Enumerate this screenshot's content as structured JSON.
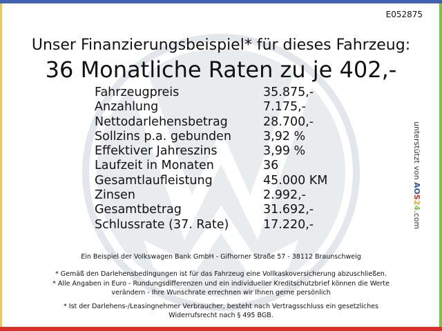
{
  "border_colors": {
    "top": "#3f63b0",
    "left": "#f3c64e",
    "right": "#7cc24a",
    "bottom": "#d6322b"
  },
  "watermark": "vw-logo",
  "code": "E052875",
  "title": "Unser Finanzierungsbeispiel* für dieses Fahrzeug:",
  "headline": "36 Monatliche Raten zu je 402,-",
  "rows": [
    {
      "label": "Fahrzeugpreis",
      "value": "35.875,-"
    },
    {
      "label": "Anzahlung",
      "value": "7.175,-"
    },
    {
      "label": "Nettodarlehensbetrag",
      "value": "28.700,-"
    },
    {
      "label": "Sollzins p.a. gebunden",
      "value": "3,92 %"
    },
    {
      "label": "Effektiver Jahreszins",
      "value": "3,99 %"
    },
    {
      "label": "Laufzeit in Monaten",
      "value": "36"
    },
    {
      "label": "Gesamtlaufleistung",
      "value": "45.000 KM"
    },
    {
      "label": "Zinsen",
      "value": "2.992,-"
    },
    {
      "label": "Gesamtbetrag",
      "value": "31.692,-"
    },
    {
      "label": "Schlussrate (37. Rate)",
      "value": "17.220,-"
    }
  ],
  "side": {
    "text": "unterstützt von",
    "brand": "AOS24",
    "suffix": ".com"
  },
  "footer": {
    "bank": "Ein Beispiel der Volkswagen Bank GmbH - Gifhorner Straße 57 - 38112 Braunschweig",
    "note1": "* Gemäß den Darlehensbedingungen ist für das Fahrzeug eine Vollkaskoversicherung abzuschließen.",
    "note2a": "* Alle Angaben in Euro - Rundungsdifferenzen und ein individueller Kreditschutzbrief können die Werte",
    "note2b": "verändern - Ihre Wunschrate errechnen wir Ihnen gerne persönlich",
    "note3a": "* Ist der Darlehens-/Leasingnehmer Verbraucher, besteht nach Vertragsschluss ein gesetzliches",
    "note3b": "Widerrufsrecht nach § 495 BGB."
  }
}
